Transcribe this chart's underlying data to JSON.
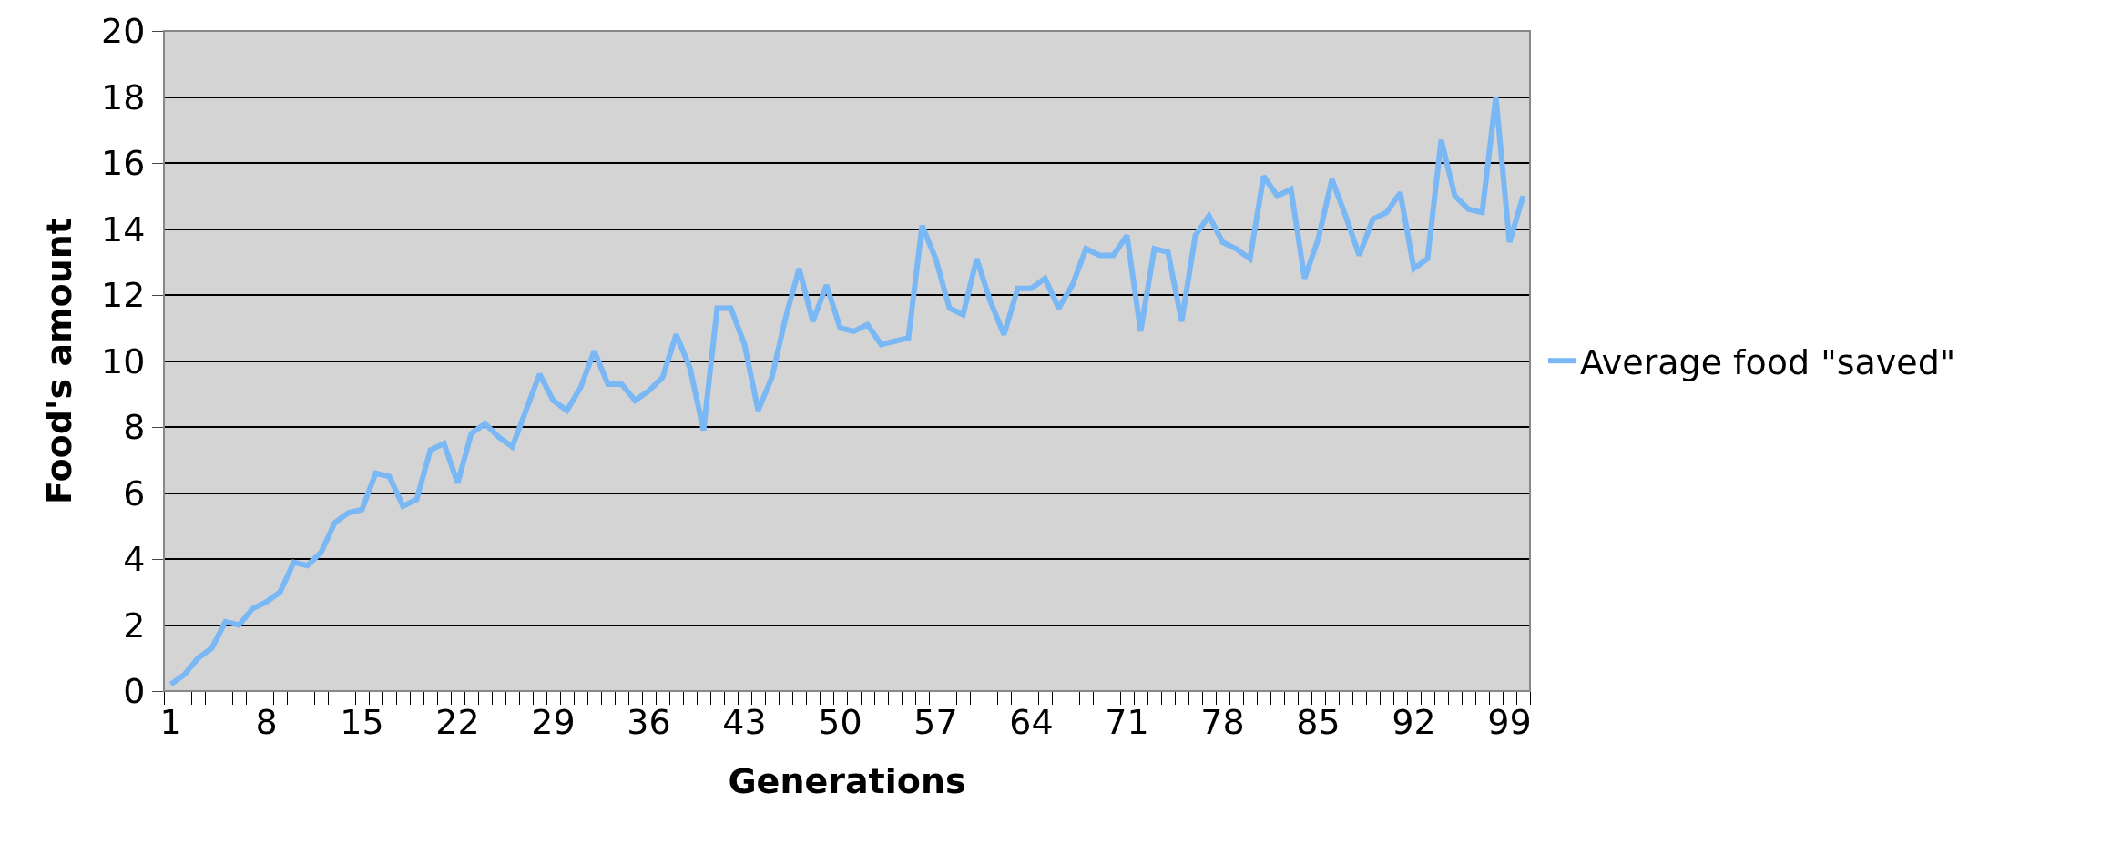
{
  "chart_data": {
    "type": "line",
    "xlabel": "Generations",
    "ylabel": "Food's amount",
    "categories": [
      "1",
      null,
      null,
      null,
      null,
      null,
      null,
      "8",
      null,
      null,
      null,
      null,
      null,
      null,
      "15",
      null,
      null,
      null,
      null,
      null,
      null,
      "22",
      null,
      null,
      null,
      null,
      null,
      null,
      "29",
      null,
      null,
      null,
      null,
      null,
      null,
      "36",
      null,
      null,
      null,
      null,
      null,
      null,
      "43",
      null,
      null,
      null,
      null,
      null,
      null,
      "50",
      null,
      null,
      null,
      null,
      null,
      null,
      "57",
      null,
      null,
      null,
      null,
      null,
      null,
      "64",
      null,
      null,
      null,
      null,
      null,
      null,
      "71",
      null,
      null,
      null,
      null,
      null,
      null,
      "78",
      null,
      null,
      null,
      null,
      null,
      null,
      "85",
      null,
      null,
      null,
      null,
      null,
      null,
      "92",
      null,
      null,
      null,
      null,
      null,
      null,
      "99",
      null
    ],
    "series": [
      {
        "name": "Average food \"saved\"",
        "color": "#7ab8f5",
        "values": [
          0.2,
          0.5,
          1.0,
          1.3,
          2.1,
          2.0,
          2.5,
          2.7,
          3.0,
          3.9,
          3.8,
          4.2,
          5.1,
          5.4,
          5.5,
          6.6,
          6.5,
          5.6,
          5.8,
          7.3,
          7.5,
          6.3,
          7.8,
          8.1,
          7.7,
          7.4,
          8.5,
          9.6,
          8.8,
          8.5,
          9.2,
          10.3,
          9.3,
          9.3,
          8.8,
          9.1,
          9.5,
          10.8,
          9.8,
          7.9,
          11.6,
          11.6,
          10.5,
          8.5,
          9.5,
          11.3,
          12.8,
          11.2,
          12.3,
          11.0,
          10.9,
          11.1,
          10.5,
          10.6,
          10.7,
          14.1,
          13.1,
          11.6,
          11.4,
          13.1,
          11.8,
          10.8,
          12.2,
          12.2,
          12.5,
          11.6,
          12.3,
          13.4,
          13.2,
          13.2,
          13.8,
          10.9,
          13.4,
          13.3,
          11.2,
          13.8,
          14.4,
          13.6,
          13.4,
          13.1,
          15.6,
          15.0,
          15.2,
          12.5,
          13.7,
          15.5,
          14.4,
          13.2,
          14.3,
          14.5,
          15.1,
          12.8,
          13.1,
          16.7,
          15.0,
          14.6,
          14.5,
          18.0,
          13.6,
          15.0
        ]
      }
    ],
    "ylim": [
      0,
      20
    ],
    "yticks": [
      0,
      2,
      4,
      6,
      8,
      10,
      12,
      14,
      16,
      18,
      20
    ],
    "grid": "y",
    "legend": "right",
    "marker": "none",
    "line_style": "solid"
  }
}
